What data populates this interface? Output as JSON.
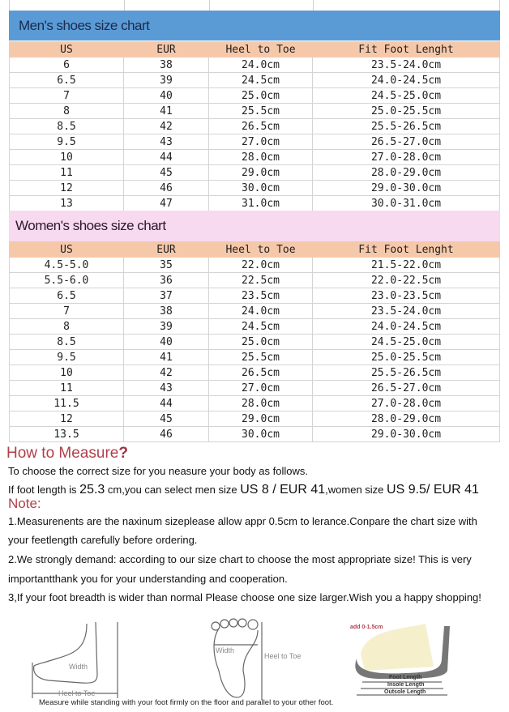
{
  "men": {
    "title": "Men's shoes size chart",
    "headers": [
      "US",
      "EUR",
      "Heel to Toe",
      "Fit Foot Lenght"
    ],
    "rows": [
      [
        "6",
        "38",
        "24.0cm",
        "23.5-24.0cm"
      ],
      [
        "6.5",
        "39",
        "24.5cm",
        "24.0-24.5cm"
      ],
      [
        "7",
        "40",
        "25.0cm",
        "24.5-25.0cm"
      ],
      [
        "8",
        "41",
        "25.5cm",
        "25.0-25.5cm"
      ],
      [
        "8.5",
        "42",
        "26.5cm",
        "25.5-26.5cm"
      ],
      [
        "9.5",
        "43",
        "27.0cm",
        "26.5-27.0cm"
      ],
      [
        "10",
        "44",
        "28.0cm",
        "27.0-28.0cm"
      ],
      [
        "11",
        "45",
        "29.0cm",
        "28.0-29.0cm"
      ],
      [
        "12",
        "46",
        "30.0cm",
        "29.0-30.0cm"
      ],
      [
        "13",
        "47",
        "31.0cm",
        "30.0-31.0cm"
      ]
    ]
  },
  "women": {
    "title": "Women's  shoes size chart",
    "headers": [
      "US",
      "EUR",
      "Heel to Toe",
      "Fit Foot Lenght"
    ],
    "rows": [
      [
        "4.5-5.0",
        "35",
        "22.0cm",
        "21.5-22.0cm"
      ],
      [
        "5.5-6.0",
        "36",
        "22.5cm",
        "22.0-22.5cm"
      ],
      [
        "6.5",
        "37",
        "23.5cm",
        "23.0-23.5cm"
      ],
      [
        "7",
        "38",
        "24.0cm",
        "23.5-24.0cm"
      ],
      [
        "8",
        "39",
        "24.5cm",
        "24.0-24.5cm"
      ],
      [
        "8.5",
        "40",
        "25.0cm",
        "24.5-25.0cm"
      ],
      [
        "9.5",
        "41",
        "25.5cm",
        "25.0-25.5cm"
      ],
      [
        "10",
        "42",
        "26.5cm",
        "25.5-26.5cm"
      ],
      [
        "11",
        "43",
        "27.0cm",
        "26.5-27.0cm"
      ],
      [
        "11.5",
        "44",
        "28.0cm",
        "27.0-28.0cm"
      ],
      [
        "12",
        "45",
        "29.0cm",
        "28.0-29.0cm"
      ],
      [
        "13.5",
        "46",
        "30.0cm",
        "29.0-30.0cm"
      ]
    ]
  },
  "measure": {
    "heading": "How to Measure",
    "heading_mark": "?",
    "intro": "To choose the correct size for you neasure your body as follows.",
    "example": {
      "p1": "If foot length is ",
      "len": "25.3",
      "p2": " cm,you can select men size ",
      "men": "US 8 / EUR 41",
      "p3": ",women size ",
      "women": "US 9.5/ EUR 41"
    }
  },
  "note": {
    "heading": "Note:",
    "lines": [
      "1.Measurenents are the naxinum sizeplease allow appr 0.5cm to lerance.Conpare the chart size with",
      " your feetlength carefully before ordering.",
      "2.We strongly demand: according to our size chart to choose the most appropriate size! This is very",
      "importantthank you for your understanding and cooperation.",
      "3,If your foot breadth is wider than normal Please choose one size larger.Wish you a happy shopping!"
    ]
  },
  "figures": {
    "side_width": "Width",
    "side_heel": "Heel to Toe",
    "sole_width": "Width",
    "sole_heel": "Heel to Toe",
    "add": "add 0-1.5cm",
    "foot_len": "Foot Length",
    "insole_len": "Insole Length",
    "outsole_len": "Outsole Length",
    "caption": "Measure while standing with your foot firmly on the floor and parallel to your other foot."
  }
}
